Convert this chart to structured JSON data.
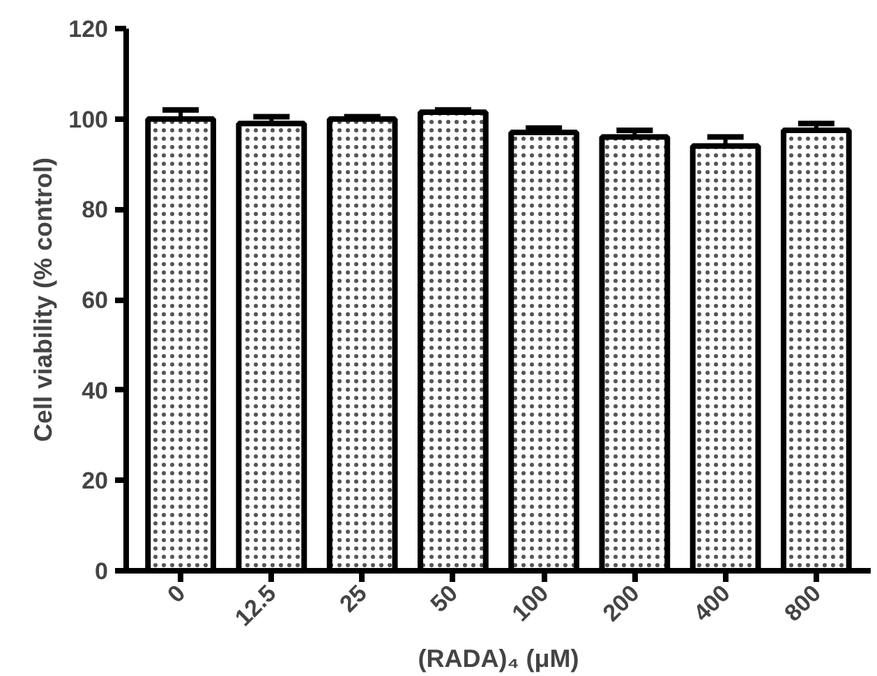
{
  "chart_data": {
    "type": "bar",
    "xlabel": "(RADA)₄ (μM)",
    "ylabel": "Cell viability (% control)",
    "categories": [
      "0",
      "12.5",
      "25",
      "50",
      "100",
      "200",
      "400",
      "800"
    ],
    "values": [
      100,
      99,
      100,
      101.5,
      97,
      96,
      94,
      97.5
    ],
    "errors": [
      2,
      1.5,
      0.5,
      0.5,
      1,
      1.5,
      2,
      1.5
    ],
    "color": "#ffffff",
    "ylim": [
      0,
      120
    ],
    "yticks": [
      0,
      20,
      40,
      60,
      80,
      100,
      120
    ]
  }
}
